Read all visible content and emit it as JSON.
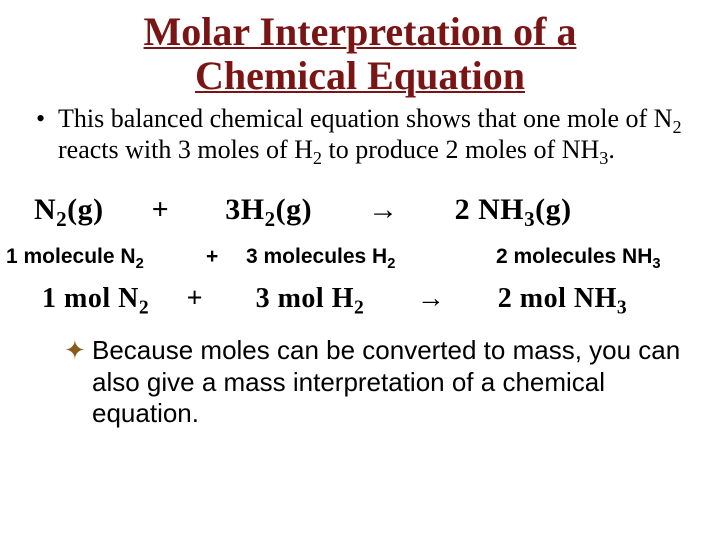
{
  "colors": {
    "title": "#7a1515",
    "body": "#000000",
    "star": "#8a5a1a",
    "background": "#ffffff"
  },
  "fontsizes": {
    "title_pt": 40,
    "body_pt": 26,
    "equation_main_pt": 30,
    "equation_mol_pt": 28,
    "molecule_line_pt": 21
  },
  "title": {
    "line1": "Molar Interpretation of a",
    "line2": "Chemical Equation"
  },
  "bullet1": {
    "marker": "•",
    "text_prefix": "This balanced chemical equation shows that one mole of N",
    "n2_sub": "2",
    "text_mid1": " reacts with 3 moles of H",
    "h2_sub": "2",
    "text_mid2": " to produce 2 moles of NH",
    "nh3_sub": "3",
    "text_end": "."
  },
  "equation_main": {
    "t1": "N",
    "s1": "2",
    "t2": "(g)",
    "plus1": "+",
    "t3": "3H",
    "s3": "2",
    "t4": "(g)",
    "arrow": "→",
    "t5": "2 NH",
    "s5": "3",
    "t6": "(g)"
  },
  "molecule_line": {
    "seg1_text": "1 molecule N",
    "seg1_sub": "2",
    "plus": "+",
    "seg2_text": "3 molecules H",
    "seg2_sub": "2",
    "seg3_text": "2 molecules NH",
    "seg3_sub": "3"
  },
  "equation_mol": {
    "t1": "1 mol N",
    "s1": "2",
    "plus1": "+",
    "t3": "3 mol H",
    "s3": "2",
    "arrow": "→",
    "t5": "2 mol NH",
    "s5": "3"
  },
  "bullet2": {
    "star": "✦",
    "text": "Because moles can be converted to mass, you can also give a mass interpretation of a chemical equation."
  }
}
